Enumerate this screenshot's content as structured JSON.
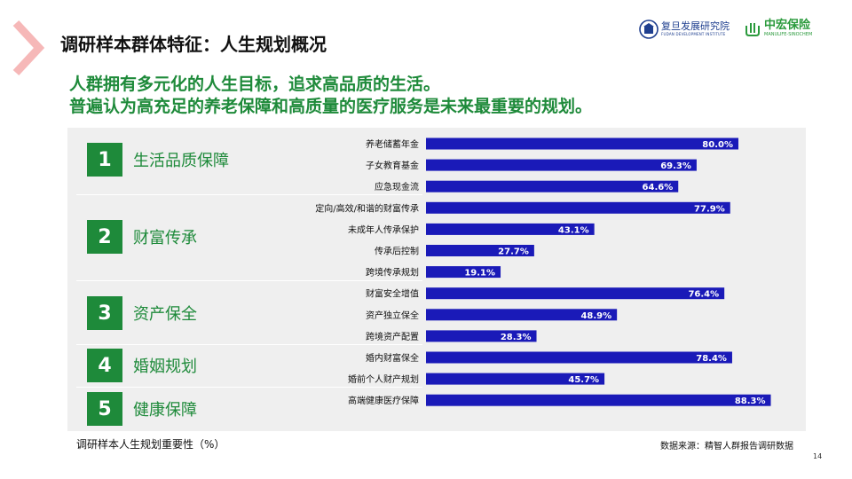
{
  "header": {
    "title": "调研样本群体特征：人生规划概况",
    "logo_fudan_cn": "复旦发展研究院",
    "logo_fudan_en": "FUDAN DEVELOPMENT INSTITUTE",
    "logo_sino_cn": "中宏保险",
    "logo_sino_en": "MANULIFE-SINOCHEM"
  },
  "subtitle": {
    "line1": "人群拥有多元化的人生目标，追求高品质的生活。",
    "line2": "普遍认为高充足的养老保障和高质量的医疗服务是未来最重要的规划。"
  },
  "groups": [
    {
      "num": "1",
      "name": "生活品质保障"
    },
    {
      "num": "2",
      "name": "财富传承"
    },
    {
      "num": "3",
      "name": "资产保全"
    },
    {
      "num": "4",
      "name": "婚姻规划"
    },
    {
      "num": "5",
      "name": "健康保障"
    }
  ],
  "chart_data": {
    "type": "bar",
    "orientation": "horizontal",
    "categories": [
      "养老储蓄年金",
      "子女教育基金",
      "应急现金流",
      "定向/高效/和谐的财富传承",
      "未成年人传承保护",
      "传承后控制",
      "跨境传承规划",
      "财富安全增值",
      "资产独立保全",
      "跨境资产配置",
      "婚内财富保全",
      "婚前个人财产规划",
      "高端健康医疗保障"
    ],
    "values": [
      80.0,
      69.3,
      64.6,
      77.9,
      43.1,
      27.7,
      19.1,
      76.4,
      48.9,
      28.3,
      78.4,
      45.7,
      88.3
    ],
    "value_labels": [
      "80.0%",
      "69.3%",
      "64.6%",
      "77.9%",
      "43.1%",
      "27.7%",
      "19.1%",
      "76.4%",
      "48.9%",
      "28.3%",
      "78.4%",
      "45.7%",
      "88.3%"
    ],
    "bar_color": "#1a1ab8",
    "xlim": [
      0,
      100
    ]
  },
  "footer": {
    "note": "调研样本人生规划重要性（%）",
    "source": "数据来源：精智人群报告调研数据",
    "page": "14"
  },
  "colors": {
    "accent_green": "#1e8a3a",
    "chevron_pink": "#f6b8b8",
    "bar_blue": "#1a1ab8",
    "panel_gray": "#efefef"
  }
}
